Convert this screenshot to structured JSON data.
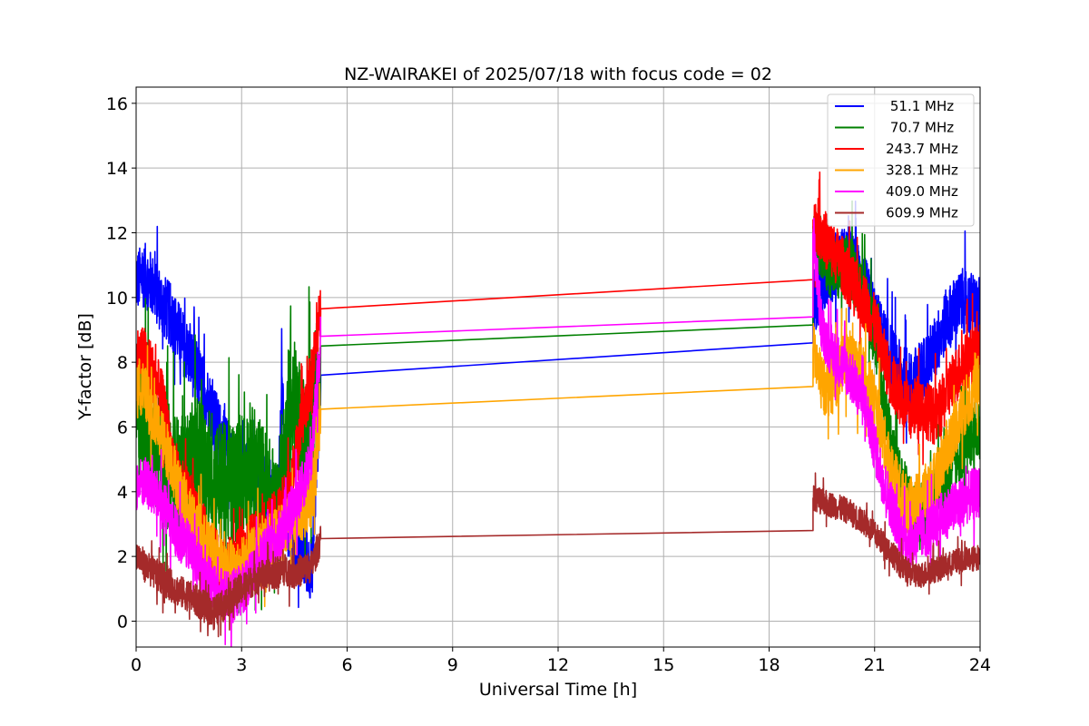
{
  "chart_data": {
    "type": "line",
    "title": "NZ-WAIRAKEI of 2025/07/18 with focus code = 02",
    "xlabel": "Universal Time [h]",
    "ylabel": "Y-factor [dB]",
    "xlim": [
      0,
      24
    ],
    "ylim": [
      -0.8,
      16.5
    ],
    "xticks": [
      0,
      3,
      6,
      9,
      12,
      15,
      18,
      21,
      24
    ],
    "yticks": [
      0,
      2,
      4,
      6,
      8,
      10,
      12,
      14,
      16
    ],
    "grid": true,
    "legend_position": "top-right",
    "series": [
      {
        "name": "51.1 MHz",
        "color": "#0000ff",
        "segments": [
          {
            "x": [
              0,
              0.25,
              0.5,
              0.75,
              1,
              1.25,
              1.5,
              1.75,
              2,
              2.25,
              2.5,
              2.75,
              3,
              3.25,
              3.5,
              3.75,
              4,
              4.15,
              4.3,
              4.5,
              4.75,
              5,
              5.25
            ],
            "y": [
              10.5,
              10.7,
              10.3,
              9.8,
              9.4,
              8.8,
              8.2,
              7.6,
              7,
              6.2,
              5.5,
              4.9,
              4.5,
              4.6,
              4.4,
              3.9,
              3.2,
              7.2,
              3.0,
              2.3,
              2.0,
              1.6,
              7.6
            ],
            "band": 1.0
          },
          {
            "x": [
              5.25,
              19.25
            ],
            "y": [
              7.6,
              8.6
            ],
            "band": 0
          },
          {
            "x": [
              19.25,
              19.5,
              19.75,
              20,
              20.25,
              20.5,
              20.75,
              21,
              21.25,
              21.5,
              21.75,
              22,
              22.25,
              22.5,
              22.75,
              23,
              23.25,
              23.5,
              23.75,
              24
            ],
            "y": [
              9.8,
              10.3,
              10.8,
              11.2,
              11.2,
              10.8,
              10.2,
              9.4,
              8.7,
              8.1,
              7.6,
              7.3,
              7.6,
              8.0,
              8.5,
              9.2,
              9.6,
              9.9,
              9.8,
              9.6
            ],
            "band": 1.0
          }
        ]
      },
      {
        "name": "70.7 MHz",
        "color": "#008000",
        "segments": [
          {
            "x": [
              0,
              0.25,
              0.5,
              0.75,
              1,
              1.25,
              1.5,
              1.75,
              2,
              2.25,
              2.5,
              2.75,
              3,
              3.25,
              3.5,
              3.75,
              4,
              4.25,
              4.5,
              4.75,
              5,
              5.25
            ],
            "y": [
              6.5,
              6.2,
              5.6,
              5.1,
              4.6,
              4.3,
              4.6,
              5.0,
              4.8,
              4.4,
              4.2,
              4.2,
              4.6,
              4.8,
              4.4,
              3.8,
              3.2,
              5.4,
              6.8,
              5.5,
              6.2,
              8.5
            ],
            "band": 2.0
          },
          {
            "x": [
              5.25,
              19.25
            ],
            "y": [
              8.5,
              9.15
            ],
            "band": 0
          },
          {
            "x": [
              19.25,
              19.5,
              19.75,
              20,
              20.25,
              20.5,
              20.75,
              21,
              21.25,
              21.5,
              21.75,
              22,
              22.25,
              22.5,
              22.75,
              23,
              23.25,
              23.5,
              23.75,
              24
            ],
            "y": [
              12.2,
              11.5,
              11.0,
              10.8,
              11.0,
              10.6,
              10.0,
              8.8,
              7.0,
              5.3,
              4.3,
              3.5,
              3.2,
              3.7,
              4.0,
              4.4,
              4.9,
              5.4,
              5.7,
              5.9
            ],
            "band": 1.0
          }
        ]
      },
      {
        "name": "243.7 MHz",
        "color": "#ff0000",
        "segments": [
          {
            "x": [
              0,
              0.25,
              0.5,
              0.75,
              1,
              1.25,
              1.5,
              1.75,
              2,
              2.25,
              2.5,
              2.75,
              3,
              3.25,
              3.5,
              3.75,
              4,
              4.25,
              4.5,
              4.75,
              5,
              5.25
            ],
            "y": [
              8.2,
              8.2,
              7.6,
              6.8,
              5.2,
              4.2,
              3.8,
              3.0,
              2.6,
              2.0,
              1.7,
              1.7,
              2.1,
              2.4,
              2.6,
              2.9,
              3.2,
              3.8,
              4.8,
              6.4,
              7.6,
              9.65
            ],
            "band": 0.9
          },
          {
            "x": [
              5.25,
              19.25
            ],
            "y": [
              9.65,
              10.55
            ],
            "band": 0
          },
          {
            "x": [
              19.25,
              19.5,
              19.75,
              20,
              20.25,
              20.5,
              20.75,
              21,
              21.25,
              21.5,
              21.75,
              22,
              22.25,
              22.5,
              22.75,
              23,
              23.25,
              23.5,
              23.75,
              24
            ],
            "y": [
              12.4,
              12.0,
              11.5,
              11.2,
              10.6,
              10.2,
              9.8,
              9.2,
              8.2,
              7.4,
              6.9,
              6.4,
              6.8,
              6.5,
              6.3,
              6.9,
              7.5,
              7.9,
              8.2,
              8.3
            ],
            "band": 0.9
          }
        ]
      },
      {
        "name": "328.1 MHz",
        "color": "#ffa500",
        "segments": [
          {
            "x": [
              0,
              0.25,
              0.5,
              0.75,
              1,
              1.25,
              1.5,
              1.75,
              2,
              2.25,
              2.5,
              2.75,
              3,
              3.25,
              3.5,
              3.75,
              4,
              4.25,
              4.5,
              4.75,
              5,
              5.25
            ],
            "y": [
              7.4,
              7.0,
              6.3,
              5.6,
              5.0,
              4.0,
              3.4,
              2.9,
              2.4,
              2.0,
              1.7,
              1.6,
              1.7,
              2.0,
              2.2,
              2.4,
              2.6,
              2.9,
              3.1,
              3.4,
              3.8,
              6.55
            ],
            "band": 0.9
          },
          {
            "x": [
              5.25,
              19.25
            ],
            "y": [
              6.55,
              7.25
            ],
            "band": 0
          },
          {
            "x": [
              19.25,
              19.5,
              19.75,
              20,
              20.25,
              20.5,
              20.75,
              21,
              21.25,
              21.5,
              21.75,
              22,
              22.25,
              22.5,
              22.75,
              23,
              23.25,
              23.5,
              23.75,
              24
            ],
            "y": [
              8.4,
              7.3,
              7.2,
              7.7,
              8.2,
              7.8,
              7.5,
              6.8,
              5.6,
              4.6,
              3.9,
              3.5,
              3.8,
              4.0,
              4.4,
              5.2,
              5.9,
              6.5,
              7.0,
              7.4
            ],
            "band": 0.9
          }
        ]
      },
      {
        "name": "409.0 MHz",
        "color": "#ff00ff",
        "segments": [
          {
            "x": [
              0,
              0.25,
              0.5,
              0.75,
              1,
              1.25,
              1.5,
              1.75,
              2,
              2.25,
              2.5,
              2.75,
              3,
              3.25,
              3.5,
              3.75,
              4,
              4.25,
              4.5,
              4.75,
              5,
              5.25
            ],
            "y": [
              4.2,
              4.3,
              4.0,
              3.6,
              3.0,
              2.6,
              2.3,
              1.8,
              1.3,
              1.0,
              0.8,
              0.8,
              1.0,
              1.3,
              1.8,
              2.2,
              2.5,
              2.9,
              3.6,
              4.2,
              5.2,
              8.8
            ],
            "band": 0.8
          },
          {
            "x": [
              5.25,
              19.25
            ],
            "y": [
              8.8,
              9.4
            ],
            "band": 0
          },
          {
            "x": [
              19.25,
              19.5,
              19.75,
              20,
              20.25,
              20.5,
              20.75,
              21,
              21.25,
              21.5,
              21.75,
              22,
              22.25,
              22.5,
              22.75,
              23,
              23.25,
              23.5,
              23.75,
              24
            ],
            "y": [
              12.0,
              9.0,
              8.4,
              8.0,
              7.7,
              7.2,
              6.6,
              5.4,
              4.3,
              3.5,
              2.7,
              2.4,
              2.6,
              2.8,
              3.0,
              3.3,
              3.5,
              3.7,
              3.9,
              4.0
            ],
            "band": 0.8
          }
        ]
      },
      {
        "name": "609.9 MHz",
        "color": "#a52a2a",
        "segments": [
          {
            "x": [
              0,
              0.25,
              0.5,
              0.75,
              1,
              1.25,
              1.5,
              1.75,
              2,
              2.25,
              2.5,
              2.75,
              3,
              3.25,
              3.5,
              3.75,
              4,
              4.25,
              4.5,
              4.75,
              5,
              5.25
            ],
            "y": [
              2.1,
              1.7,
              1.5,
              1.3,
              1.1,
              0.9,
              0.8,
              0.6,
              0.4,
              0.3,
              0.5,
              0.8,
              1.0,
              1.2,
              1.4,
              1.4,
              1.5,
              1.6,
              1.5,
              1.6,
              1.7,
              2.55
            ],
            "band": 0.5
          },
          {
            "x": [
              5.25,
              19.25
            ],
            "y": [
              2.55,
              2.8
            ],
            "band": 0
          },
          {
            "x": [
              19.25,
              19.5,
              19.75,
              20,
              20.25,
              20.5,
              20.75,
              21,
              21.25,
              21.5,
              21.75,
              22,
              22.25,
              22.5,
              22.75,
              23,
              23.25,
              23.5,
              23.75,
              24
            ],
            "y": [
              3.8,
              3.7,
              3.6,
              3.5,
              3.4,
              3.2,
              3.0,
              2.7,
              2.4,
              2.1,
              1.7,
              1.5,
              1.4,
              1.5,
              1.6,
              1.7,
              1.8,
              1.9,
              1.9,
              2.0
            ],
            "band": 0.4
          }
        ]
      }
    ]
  }
}
